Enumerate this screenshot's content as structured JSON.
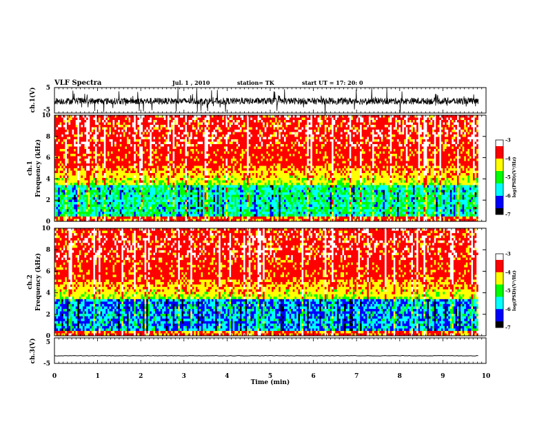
{
  "header": {
    "title": "VLF Spectra",
    "date": "Jul. 1 , 2010",
    "station": "station= TK",
    "start": "start UT = 17: 20: 0"
  },
  "chart_data": [
    {
      "type": "line",
      "name": "ch1-waveform",
      "ylabel": "ch.1(V)",
      "ylim": [
        -5,
        5
      ],
      "yticks": [
        "5",
        "-5"
      ],
      "xlim": [
        0,
        10
      ],
      "description_mean": -0.3
    },
    {
      "type": "heatmap",
      "name": "ch1-spectrogram",
      "ylabel": "ch.1\nFrequency (kHz)",
      "ylabel_lines": [
        "ch.1",
        "Frequency (kHz)"
      ],
      "ylim": [
        0,
        10
      ],
      "yticks": [
        "0",
        "2",
        "4",
        "6",
        "8",
        "10"
      ],
      "xlim": [
        0,
        10
      ],
      "colorbar": {
        "label": "log(PSD)(V²/Hz)",
        "ticks": [
          "-3",
          "-4",
          "-5",
          "-6",
          "-7"
        ],
        "range": [
          -7,
          -3
        ]
      }
    },
    {
      "type": "heatmap",
      "name": "ch2-spectrogram",
      "ylabel": "ch.2\nFrequency (kHz)",
      "ylabel_lines": [
        "ch.2",
        "Frequency (kHz)"
      ],
      "ylim": [
        0,
        10
      ],
      "yticks": [
        "0",
        "2",
        "4",
        "6",
        "8",
        "10"
      ],
      "xlim": [
        0,
        10
      ],
      "colorbar": {
        "label": "log(PSD)(V²/Hz)",
        "ticks": [
          "-3",
          "-4",
          "-5",
          "-6",
          "-7"
        ],
        "range": [
          -7,
          -3
        ]
      }
    },
    {
      "type": "line",
      "name": "ch3-waveform",
      "ylabel": "ch.3(V)",
      "ylim": [
        -5,
        5
      ],
      "yticks": [
        "5",
        "-5"
      ],
      "xlim": [
        0,
        10
      ],
      "description_mean": -2.0
    }
  ],
  "xaxis": {
    "label": "Time (min)",
    "ticks": [
      "0",
      "1",
      "2",
      "3",
      "4",
      "5",
      "6",
      "7",
      "8",
      "9",
      "10"
    ],
    "data_end": 9.82
  },
  "colors": {
    "cmap": [
      "#000000",
      "#0000ff",
      "#00ffff",
      "#00ff00",
      "#ffff00",
      "#ff0000",
      "#ffffff"
    ]
  }
}
